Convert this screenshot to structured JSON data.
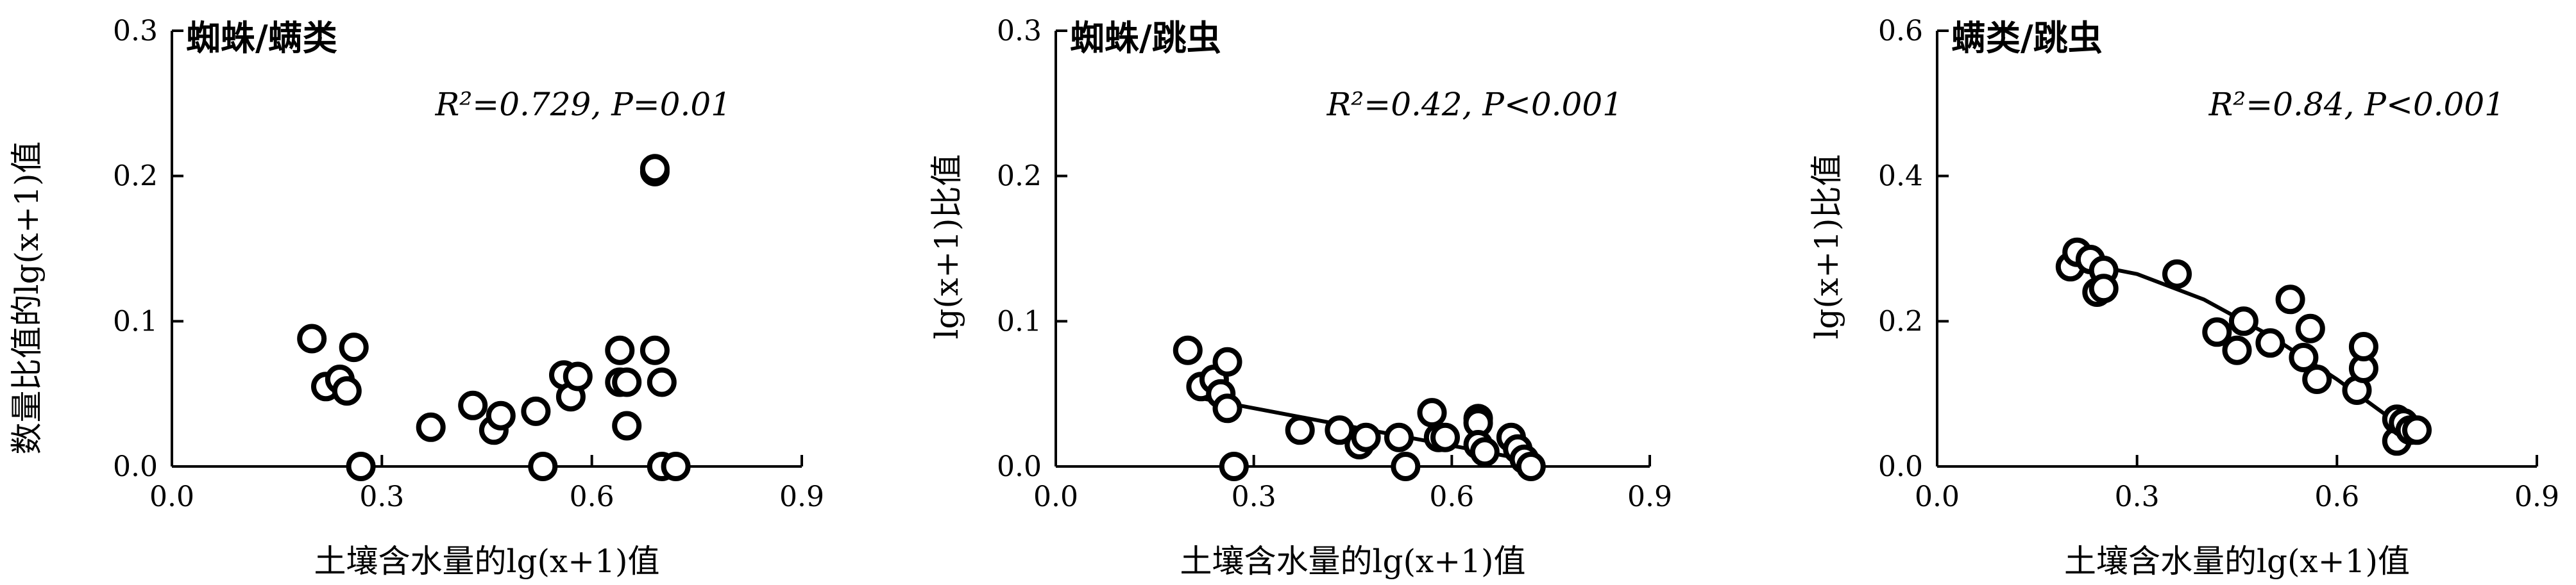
{
  "chart_data": [
    {
      "type": "scatter",
      "title": "蜘蛛/螨类",
      "annotation": "R²=0.729, P=0.01",
      "xlabel": "土壤含水量的lg(x+1)值",
      "ylabel": "数量比值的lg(x+1)值",
      "xlim": [
        0,
        0.9
      ],
      "ylim": [
        0,
        0.3
      ],
      "xticks": [
        "0.0",
        "0.3",
        "0.6",
        "0.9"
      ],
      "yticks": [
        "0.0",
        "0.1",
        "0.2",
        "0.3"
      ],
      "fit": null,
      "points": [
        [
          0.2,
          0.088
        ],
        [
          0.22,
          0.055
        ],
        [
          0.24,
          0.06
        ],
        [
          0.25,
          0.052
        ],
        [
          0.26,
          0.082
        ],
        [
          0.27,
          0.0
        ],
        [
          0.37,
          0.027
        ],
        [
          0.43,
          0.042
        ],
        [
          0.46,
          0.025
        ],
        [
          0.47,
          0.035
        ],
        [
          0.52,
          0.038
        ],
        [
          0.53,
          0.0
        ],
        [
          0.56,
          0.063
        ],
        [
          0.57,
          0.048
        ],
        [
          0.58,
          0.062
        ],
        [
          0.64,
          0.058
        ],
        [
          0.64,
          0.08
        ],
        [
          0.65,
          0.028
        ],
        [
          0.65,
          0.058
        ],
        [
          0.69,
          0.203
        ],
        [
          0.69,
          0.205
        ],
        [
          0.69,
          0.08
        ],
        [
          0.7,
          0.0
        ],
        [
          0.7,
          0.058
        ],
        [
          0.72,
          0.0
        ]
      ]
    },
    {
      "type": "scatter",
      "title": "蜘蛛/跳虫",
      "annotation": "R²=0.42, P<0.001",
      "xlabel": "土壤含水量的lg(x+1)值",
      "ylabel": "lg(x+1)比值",
      "xlim": [
        0,
        0.9
      ],
      "ylim": [
        0,
        0.3
      ],
      "xticks": [
        "0.0",
        "0.3",
        "0.6",
        "0.9"
      ],
      "yticks": [
        "0.0",
        "0.1",
        "0.2",
        "0.3"
      ],
      "fit": {
        "kind": "linear",
        "x": [
          0.22,
          0.72
        ],
        "y": [
          0.047,
          0.004
        ]
      },
      "points": [
        [
          0.2,
          0.08
        ],
        [
          0.22,
          0.055
        ],
        [
          0.24,
          0.06
        ],
        [
          0.25,
          0.05
        ],
        [
          0.26,
          0.04
        ],
        [
          0.26,
          0.072
        ],
        [
          0.27,
          0.0
        ],
        [
          0.37,
          0.025
        ],
        [
          0.43,
          0.025
        ],
        [
          0.46,
          0.015
        ],
        [
          0.47,
          0.02
        ],
        [
          0.52,
          0.02
        ],
        [
          0.53,
          0.0
        ],
        [
          0.57,
          0.037
        ],
        [
          0.58,
          0.02
        ],
        [
          0.59,
          0.02
        ],
        [
          0.64,
          0.033
        ],
        [
          0.64,
          0.03
        ],
        [
          0.64,
          0.015
        ],
        [
          0.65,
          0.01
        ],
        [
          0.69,
          0.02
        ],
        [
          0.7,
          0.012
        ],
        [
          0.71,
          0.005
        ],
        [
          0.72,
          0.0
        ]
      ]
    },
    {
      "type": "scatter",
      "title": "螨类/跳虫",
      "annotation": "R²=0.84, P<0.001",
      "xlabel": "土壤含水量的lg(x+1)值",
      "ylabel": "lg(x+1)比值",
      "xlim": [
        0,
        0.9
      ],
      "ylim": [
        0,
        0.6
      ],
      "xticks": [
        "0.0",
        "0.3",
        "0.6",
        "0.9"
      ],
      "yticks": [
        "0.0",
        "0.2",
        "0.4",
        "0.6"
      ],
      "fit": {
        "kind": "curve",
        "x": [
          0.2,
          0.3,
          0.4,
          0.5,
          0.6,
          0.72
        ],
        "y": [
          0.283,
          0.265,
          0.23,
          0.18,
          0.12,
          0.04
        ]
      },
      "points": [
        [
          0.2,
          0.275
        ],
        [
          0.21,
          0.295
        ],
        [
          0.23,
          0.285
        ],
        [
          0.24,
          0.24
        ],
        [
          0.25,
          0.27
        ],
        [
          0.25,
          0.245
        ],
        [
          0.36,
          0.265
        ],
        [
          0.42,
          0.185
        ],
        [
          0.45,
          0.16
        ],
        [
          0.46,
          0.2
        ],
        [
          0.5,
          0.17
        ],
        [
          0.53,
          0.23
        ],
        [
          0.55,
          0.15
        ],
        [
          0.56,
          0.19
        ],
        [
          0.57,
          0.12
        ],
        [
          0.63,
          0.105
        ],
        [
          0.64,
          0.135
        ],
        [
          0.64,
          0.165
        ],
        [
          0.69,
          0.035
        ],
        [
          0.69,
          0.065
        ],
        [
          0.7,
          0.06
        ],
        [
          0.71,
          0.05
        ],
        [
          0.72,
          0.05
        ]
      ]
    }
  ]
}
